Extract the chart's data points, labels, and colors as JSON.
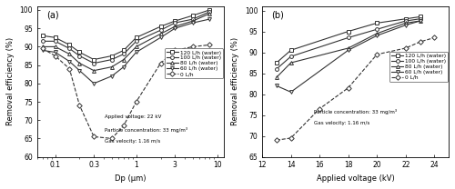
{
  "panel_a": {
    "title": "(a)",
    "xlabel": "Dp (μm)",
    "ylabel": "Removal efficiency (%)",
    "xlim": [
      0.06,
      12
    ],
    "ylim": [
      60,
      101
    ],
    "yticks": [
      60,
      65,
      70,
      75,
      80,
      85,
      90,
      95,
      100
    ],
    "annotations": [
      "Applied voltage: 22 kV",
      "Particle concentration: 33 mg/m³",
      "Gas velocity: 1.16 m/s"
    ],
    "series": [
      {
        "label": "120 L/h (water)",
        "marker": "s",
        "linestyle": "-",
        "color": "#333333",
        "x": [
          0.07,
          0.1,
          0.15,
          0.2,
          0.3,
          0.5,
          0.7,
          1.0,
          2.0,
          3.0,
          5.0,
          8.0
        ],
        "y": [
          93.0,
          92.5,
          90.5,
          88.5,
          86.5,
          87.5,
          89.0,
          92.5,
          95.5,
          97.0,
          98.5,
          100.0
        ]
      },
      {
        "label": "100 L/h (water)",
        "marker": "o",
        "linestyle": "-",
        "color": "#333333",
        "x": [
          0.07,
          0.1,
          0.15,
          0.2,
          0.3,
          0.5,
          0.7,
          1.0,
          2.0,
          3.0,
          5.0,
          8.0
        ],
        "y": [
          91.5,
          91.5,
          89.5,
          87.5,
          85.5,
          86.5,
          88.0,
          91.5,
          94.5,
          96.5,
          97.5,
          99.5
        ]
      },
      {
        "label": "80 L/h (water)",
        "marker": "^",
        "linestyle": "-",
        "color": "#333333",
        "x": [
          0.07,
          0.1,
          0.15,
          0.2,
          0.3,
          0.5,
          0.7,
          1.0,
          2.0,
          3.0,
          5.0,
          8.0
        ],
        "y": [
          90.0,
          90.0,
          88.0,
          85.5,
          83.5,
          84.5,
          86.5,
          90.0,
          93.5,
          95.5,
          97.0,
          99.0
        ]
      },
      {
        "label": "60 L/h (water)",
        "marker": "v",
        "linestyle": "-",
        "color": "#333333",
        "x": [
          0.07,
          0.1,
          0.15,
          0.2,
          0.3,
          0.5,
          0.7,
          1.0,
          2.0,
          3.0,
          5.0,
          8.0
        ],
        "y": [
          89.0,
          88.5,
          86.0,
          83.5,
          80.0,
          82.0,
          84.5,
          88.5,
          92.5,
          95.0,
          96.5,
          97.5
        ]
      },
      {
        "label": "0 L/h",
        "marker": "D",
        "linestyle": "--",
        "color": "#333333",
        "x": [
          0.07,
          0.1,
          0.15,
          0.2,
          0.3,
          0.5,
          0.7,
          1.0,
          2.0,
          3.0,
          5.0,
          8.0
        ],
        "y": [
          89.5,
          87.5,
          84.0,
          74.0,
          65.5,
          65.0,
          68.5,
          75.0,
          85.5,
          89.0,
          90.0,
          90.5
        ]
      }
    ]
  },
  "panel_b": {
    "title": "(b)",
    "xlabel": "Applied voltage (kV)",
    "ylabel": "Removal efficiency (%)",
    "xlim": [
      12,
      25
    ],
    "ylim": [
      65,
      101
    ],
    "yticks": [
      65,
      70,
      75,
      80,
      85,
      90,
      95,
      100
    ],
    "xticks": [
      12,
      14,
      16,
      18,
      20,
      22,
      24
    ],
    "annotations": [
      "Particle concentration: 33 mg/m³",
      "Gas velocity: 1.16 m/s"
    ],
    "series": [
      {
        "label": "120 L/h (water)",
        "marker": "s",
        "linestyle": "-",
        "color": "#333333",
        "x": [
          13,
          14,
          18,
          20,
          22,
          23
        ],
        "y": [
          87.5,
          90.5,
          95.0,
          97.0,
          98.0,
          98.5
        ]
      },
      {
        "label": "100 L/h (water)",
        "marker": "o",
        "linestyle": "-",
        "color": "#333333",
        "x": [
          13,
          14,
          18,
          20,
          22,
          23
        ],
        "y": [
          86.0,
          89.0,
          93.5,
          95.5,
          97.5,
          98.0
        ]
      },
      {
        "label": "80 L/h (water)",
        "marker": "^",
        "linestyle": "-",
        "color": "#333333",
        "x": [
          13,
          14,
          18,
          20,
          22,
          23
        ],
        "y": [
          84.0,
          87.5,
          91.0,
          94.5,
          97.0,
          97.5
        ]
      },
      {
        "label": "60 L/h (water)",
        "marker": "v",
        "linestyle": "-",
        "color": "#333333",
        "x": [
          13,
          14,
          18,
          20,
          22,
          23
        ],
        "y": [
          82.0,
          80.5,
          90.5,
          94.0,
          96.5,
          97.5
        ]
      },
      {
        "label": "0 L/h",
        "marker": "D",
        "linestyle": "--",
        "color": "#333333",
        "x": [
          13,
          14,
          16,
          18,
          20,
          22,
          23,
          24
        ],
        "y": [
          69.0,
          69.5,
          76.5,
          81.5,
          89.5,
          91.0,
          92.5,
          93.5
        ]
      }
    ]
  }
}
